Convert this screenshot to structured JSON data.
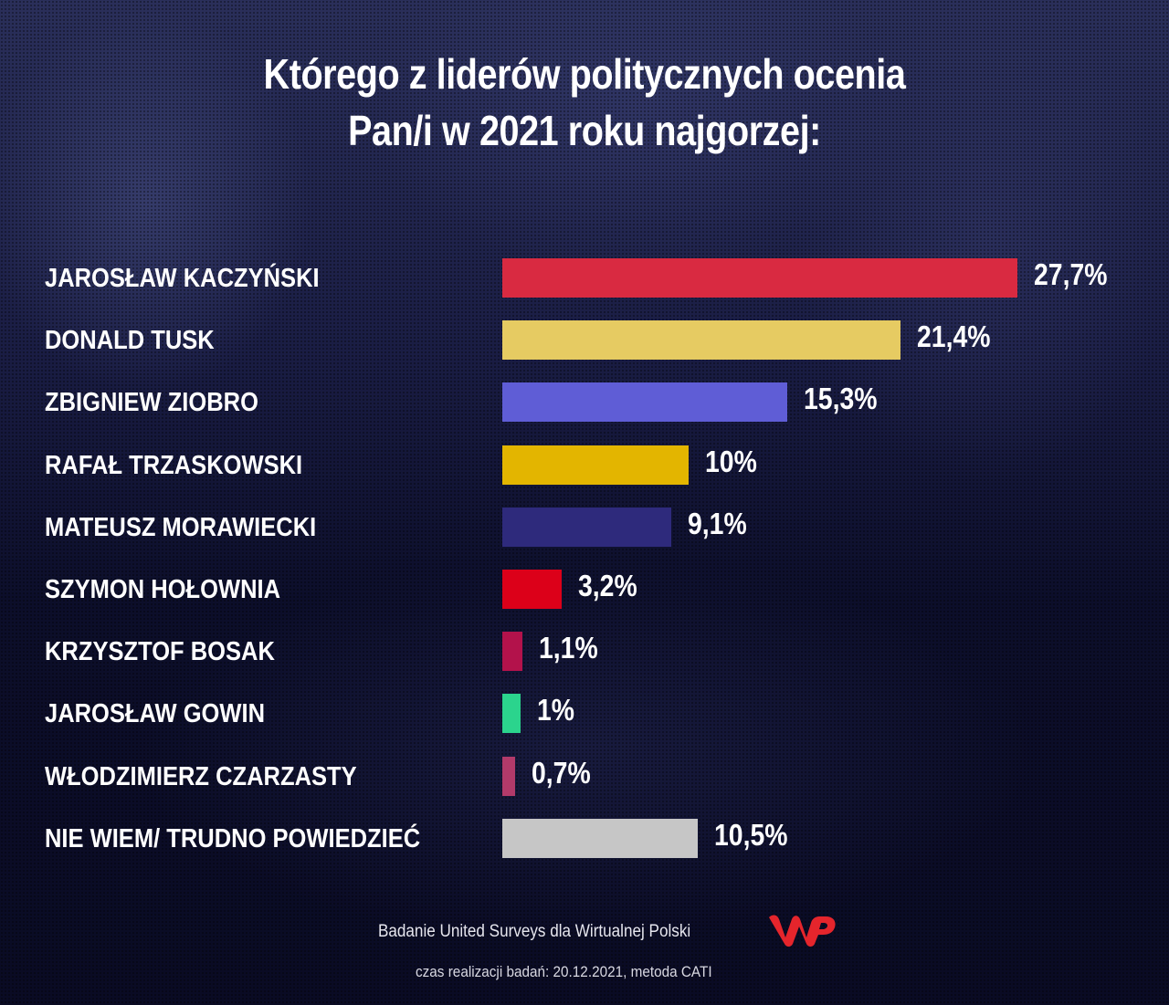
{
  "title": {
    "line1": "Którego z liderów politycznych ocenia",
    "line2": "Pan/i w 2021 roku najgorzej:"
  },
  "footer": {
    "source": "Badanie United Surveys dla Wirtualnej Polski",
    "method": "czas realizacji badań: 20.12.2021, metoda CATI",
    "logo": "wp-logo",
    "logo_color": "#e5252c"
  },
  "chart_data": {
    "type": "bar",
    "orientation": "horizontal",
    "title": "Którego z liderów politycznych ocenia Pan/i w 2021 roku najgorzej:",
    "xlabel": "",
    "ylabel": "",
    "grid": false,
    "legend": "none",
    "categories": [
      "JAROSŁAW KACZYŃSKI",
      "DONALD TUSK",
      "ZBIGNIEW ZIOBRO",
      "RAFAŁ TRZASKOWSKI",
      "MATEUSZ MORAWIECKI",
      "SZYMON HOŁOWNIA",
      "KRZYSZTOF BOSAK",
      "JAROSŁAW GOWIN",
      "WŁODZIMIERZ CZARZASTY",
      "NIE WIEM/ TRUDNO POWIEDZIEĆ"
    ],
    "values": [
      27.7,
      21.4,
      15.3,
      10,
      9.1,
      3.2,
      1.1,
      1,
      0.7,
      10.5
    ],
    "value_labels": [
      "27,7%",
      "21,4%",
      "15,3%",
      "10%",
      "9,1%",
      "3,2%",
      "1,1%",
      "1%",
      "0,7%",
      "10,5%"
    ],
    "colors": [
      "#d92a41",
      "#e6cb62",
      "#5f5dd6",
      "#e3b500",
      "#2e2a7c",
      "#dc0019",
      "#b3124b",
      "#2bd48d",
      "#b23a6a",
      "#c6c6c6"
    ],
    "unit": "%"
  }
}
